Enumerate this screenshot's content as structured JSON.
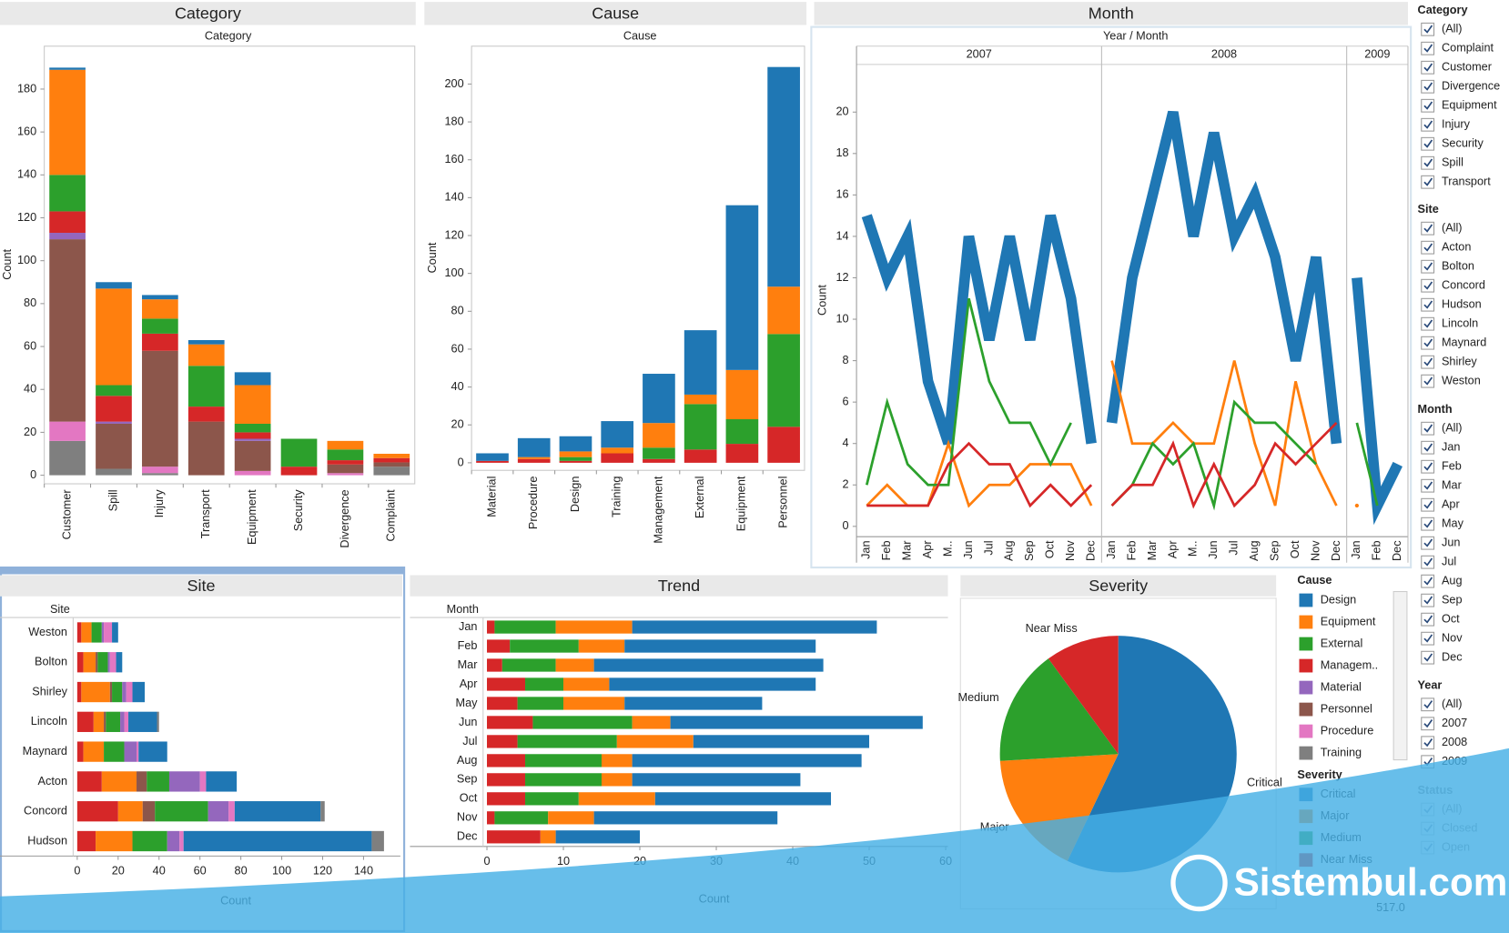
{
  "chart_data": [
    {
      "type": "stacked_bar",
      "title": "Category",
      "x_label": "Category",
      "y_label": "Count",
      "legend_title": "Cause",
      "categories": [
        "Customer",
        "Spill",
        "Injury",
        "Transport",
        "Equipment",
        "Security",
        "Divergence",
        "Complaint"
      ],
      "series": [
        {
          "name": "Design",
          "color": "#1f77b4",
          "values": [
            1,
            3,
            2,
            2,
            6,
            0,
            0,
            0
          ]
        },
        {
          "name": "Equipment",
          "color": "#ff7f0e",
          "values": [
            49,
            45,
            9,
            10,
            18,
            0,
            4,
            2
          ]
        },
        {
          "name": "External",
          "color": "#2ca02c",
          "values": [
            17,
            5,
            7,
            19,
            4,
            13,
            5,
            0
          ]
        },
        {
          "name": "Managem..",
          "color": "#d62728",
          "values": [
            10,
            12,
            8,
            7,
            3,
            4,
            2,
            2
          ]
        },
        {
          "name": "Material",
          "color": "#9467bd",
          "values": [
            3,
            1,
            0,
            0,
            1,
            0,
            0,
            0
          ]
        },
        {
          "name": "Personnel",
          "color": "#8c564b",
          "values": [
            85,
            21,
            54,
            25,
            14,
            0,
            4,
            2
          ]
        },
        {
          "name": "Procedure",
          "color": "#e377c2",
          "values": [
            9,
            0,
            3,
            0,
            2,
            0,
            1,
            0
          ]
        },
        {
          "name": "Training",
          "color": "#7f7f7f",
          "values": [
            16,
            3,
            1,
            0,
            0,
            0,
            0,
            4
          ]
        }
      ],
      "ylim": [
        -4,
        200
      ],
      "yticks": [
        0,
        20,
        40,
        60,
        80,
        100,
        120,
        140,
        160,
        180
      ]
    },
    {
      "type": "stacked_bar",
      "title": "Cause",
      "x_label": "Cause",
      "y_label": "Count",
      "legend_title": "Severity",
      "categories": [
        "Material",
        "Procedure",
        "Design",
        "Training",
        "Management",
        "External",
        "Equipment",
        "Personnel"
      ],
      "series": [
        {
          "name": "Critical",
          "color": "#1f77b4",
          "values": [
            4,
            10,
            8,
            14,
            26,
            34,
            87,
            116
          ]
        },
        {
          "name": "Major",
          "color": "#ff7f0e",
          "values": [
            0,
            1,
            3,
            3,
            13,
            5,
            26,
            25
          ]
        },
        {
          "name": "Medium",
          "color": "#2ca02c",
          "values": [
            0,
            0,
            2,
            0,
            6,
            24,
            13,
            49
          ]
        },
        {
          "name": "Near Miss",
          "color": "#d62728",
          "values": [
            1,
            2,
            1,
            5,
            2,
            7,
            10,
            19
          ]
        }
      ],
      "ylim": [
        -4,
        220
      ],
      "yticks": [
        0,
        20,
        40,
        60,
        80,
        100,
        120,
        140,
        160,
        180,
        200
      ]
    },
    {
      "type": "line",
      "title": "Month",
      "x_label": "Year / Month",
      "y_label": "Count",
      "panes": [
        {
          "label": "2007",
          "categories": [
            "Jan",
            "Feb",
            "Mar",
            "Apr",
            "M..",
            "Jun",
            "Jul",
            "Aug",
            "Sep",
            "Oct",
            "Nov",
            "Dec"
          ]
        },
        {
          "label": "2008",
          "categories": [
            "Jan",
            "Feb",
            "Mar",
            "Apr",
            "M..",
            "Jun",
            "Jul",
            "Aug",
            "Sep",
            "Oct",
            "Nov",
            "Dec"
          ]
        },
        {
          "label": "2009",
          "categories": [
            "Jan",
            "Feb",
            "Dec"
          ]
        }
      ],
      "series": [
        {
          "color": "#1f77b4",
          "values": [
            [
              15,
              12,
              14,
              7,
              4,
              14,
              9,
              14,
              9,
              15,
              11,
              4
            ],
            [
              5,
              12,
              16,
              20,
              14,
              19,
              14,
              16,
              13,
              8,
              13,
              4
            ],
            [
              12,
              1,
              3
            ]
          ]
        },
        {
          "color": "#ff7f0e",
          "values": [
            [
              1,
              2,
              1,
              1,
              4,
              1,
              2,
              2,
              3,
              3,
              3,
              1
            ],
            [
              8,
              4,
              4,
              5,
              4,
              4,
              8,
              4,
              1,
              7,
              3,
              1
            ],
            [
              1,
              null,
              null
            ]
          ]
        },
        {
          "color": "#2ca02c",
          "values": [
            [
              2,
              6,
              3,
              2,
              2,
              11,
              7,
              5,
              5,
              3,
              5,
              null
            ],
            [
              1,
              2,
              4,
              3,
              4,
              1,
              6,
              5,
              5,
              4,
              3,
              null
            ],
            [
              5,
              1,
              null
            ]
          ]
        },
        {
          "color": "#d62728",
          "values": [
            [
              1,
              1,
              1,
              1,
              3,
              4,
              3,
              3,
              1,
              2,
              1,
              2
            ],
            [
              1,
              2,
              2,
              4,
              1,
              3,
              1,
              2,
              4,
              3,
              4,
              5
            ],
            [
              null,
              null,
              null
            ]
          ]
        }
      ],
      "ylim": [
        -0.5,
        22.3
      ],
      "yticks": [
        0,
        2,
        4,
        6,
        8,
        10,
        12,
        14,
        16,
        18,
        20
      ]
    },
    {
      "type": "hbar",
      "title": "Site",
      "y_label": "Site",
      "x_label": "Count",
      "categories": [
        "Weston",
        "Bolton",
        "Shirley",
        "Lincoln",
        "Maynard",
        "Acton",
        "Concord",
        "Hudson"
      ],
      "series": [
        {
          "color": "#d62728",
          "values": [
            2,
            3,
            2,
            8,
            3,
            12,
            20,
            9
          ]
        },
        {
          "color": "#ff7f0e",
          "values": [
            5,
            6,
            14,
            5,
            10,
            17,
            12,
            18
          ]
        },
        {
          "color": "#8c564b",
          "values": [
            0,
            1,
            1,
            1,
            0,
            5,
            6,
            0
          ]
        },
        {
          "color": "#2ca02c",
          "values": [
            5,
            5,
            5,
            7,
            10,
            11,
            26,
            17
          ]
        },
        {
          "color": "#9467bd",
          "values": [
            1,
            1,
            2,
            2,
            6,
            15,
            10,
            6
          ]
        },
        {
          "color": "#e377c2",
          "values": [
            4,
            3,
            3,
            2,
            1,
            3,
            3,
            2
          ]
        },
        {
          "color": "#1f77b4",
          "values": [
            3,
            3,
            6,
            14,
            14,
            15,
            42,
            92
          ]
        },
        {
          "color": "#7f7f7f",
          "values": [
            0,
            0,
            0,
            1,
            0,
            0,
            2,
            6
          ]
        }
      ],
      "xlim": [
        -2,
        158
      ],
      "xticks": [
        0,
        20,
        40,
        60,
        80,
        100,
        120,
        140
      ]
    },
    {
      "type": "hbar",
      "title": "Trend",
      "y_label": "Month",
      "x_label": "Count",
      "categories": [
        "Jan",
        "Feb",
        "Mar",
        "Apr",
        "May",
        "Jun",
        "Jul",
        "Aug",
        "Sep",
        "Oct",
        "Nov",
        "Dec"
      ],
      "series": [
        {
          "color": "#d62728",
          "values": [
            1,
            3,
            2,
            5,
            4,
            6,
            4,
            5,
            5,
            5,
            1,
            7
          ]
        },
        {
          "color": "#2ca02c",
          "values": [
            8,
            9,
            7,
            5,
            6,
            13,
            13,
            10,
            10,
            7,
            7,
            0
          ]
        },
        {
          "color": "#ff7f0e",
          "values": [
            10,
            6,
            5,
            6,
            8,
            5,
            10,
            4,
            4,
            10,
            6,
            2
          ]
        },
        {
          "color": "#1f77b4",
          "values": [
            32,
            25,
            30,
            27,
            18,
            33,
            23,
            30,
            22,
            23,
            24,
            11
          ]
        }
      ],
      "xlim": [
        -0.5,
        60.3
      ],
      "xticks": [
        0,
        10,
        20,
        30,
        40,
        50,
        60
      ]
    },
    {
      "type": "pie",
      "title": "Severity",
      "categories": [
        "Critical",
        "Major",
        "Medium",
        "Near Miss"
      ],
      "values": [
        295,
        88,
        82,
        52
      ],
      "colors": [
        "#1f77b4",
        "#ff7f0e",
        "#2ca02c",
        "#d62728"
      ]
    }
  ],
  "filters": [
    {
      "title": "Category",
      "options": [
        "(All)",
        "Complaint",
        "Customer",
        "Divergence",
        "Equipment",
        "Injury",
        "Security",
        "Spill",
        "Transport"
      ]
    },
    {
      "title": "Site",
      "options": [
        "(All)",
        "Acton",
        "Bolton",
        "Concord",
        "Hudson",
        "Lincoln",
        "Maynard",
        "Shirley",
        "Weston"
      ]
    },
    {
      "title": "Month",
      "options": [
        "(All)",
        "Jan",
        "Feb",
        "Mar",
        "Apr",
        "May",
        "Jun",
        "Jul",
        "Aug",
        "Sep",
        "Oct",
        "Nov",
        "Dec"
      ]
    },
    {
      "title": "Year",
      "options": [
        "(All)",
        "2007",
        "2008",
        "2009"
      ]
    },
    {
      "title": "Status",
      "options": [
        "(All)",
        "Closed",
        "Open"
      ]
    }
  ],
  "total": "517.0",
  "watermark": "Sistembul.com"
}
